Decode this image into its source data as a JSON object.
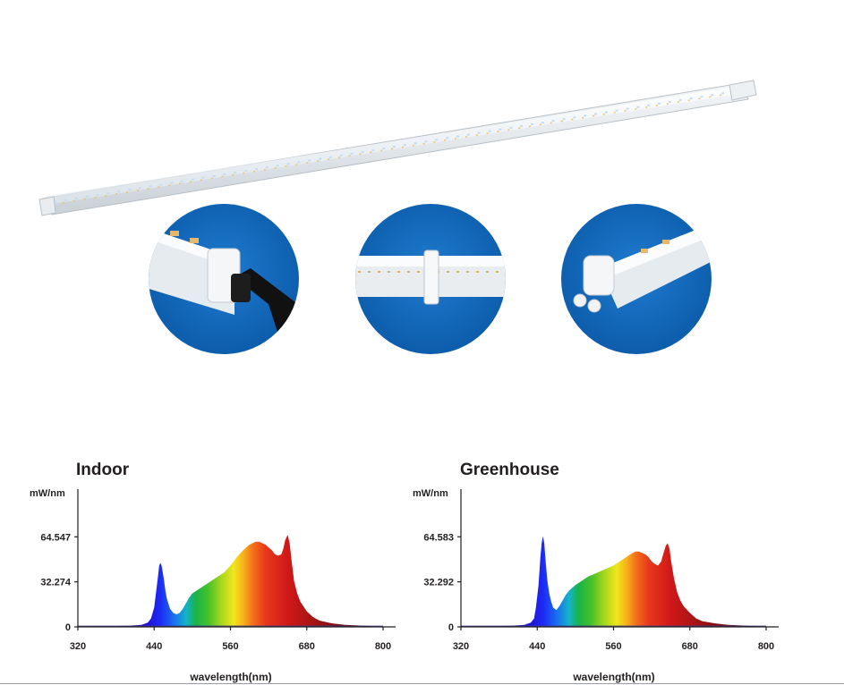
{
  "chart_data": [
    {
      "type": "area",
      "title": "Indoor",
      "ylabel": "mW/nm",
      "xlabel": "wavelength(nm)",
      "x_ticks": [
        320,
        440,
        560,
        680,
        800
      ],
      "y_ticks": [
        0,
        32.274,
        64.547
      ],
      "y_tick_labels": [
        "0",
        "32.274",
        "64.547"
      ],
      "xlim": [
        320,
        800
      ],
      "ylim": [
        0,
        96.8
      ],
      "grid": false,
      "series": [
        {
          "x": [
            320,
            380,
            400,
            420,
            430,
            435,
            440,
            443,
            446,
            448,
            450,
            452,
            455,
            458,
            460,
            465,
            470,
            475,
            480,
            485,
            490,
            495,
            500,
            510,
            520,
            530,
            540,
            550,
            560,
            570,
            580,
            590,
            600,
            605,
            610,
            615,
            620,
            625,
            630,
            635,
            640,
            643,
            646,
            650,
            653,
            656,
            660,
            665,
            670,
            680,
            690,
            700,
            720,
            740,
            760,
            780,
            800
          ],
          "y": [
            0.5,
            0.6,
            0.8,
            1.5,
            3,
            6,
            14,
            25,
            36,
            44,
            46,
            43,
            35,
            25,
            20,
            13,
            10,
            9,
            10,
            13,
            17,
            21,
            24,
            27,
            30,
            33,
            36,
            39,
            44,
            50,
            55,
            59,
            61,
            61,
            60,
            59,
            57,
            55,
            52,
            51,
            52,
            56,
            62,
            66,
            60,
            48,
            33,
            24,
            18,
            11,
            7,
            4.5,
            2.5,
            1.5,
            1,
            0.6,
            0.4
          ]
        }
      ]
    },
    {
      "type": "area",
      "title": "Greenhouse",
      "ylabel": "mW/nm",
      "xlabel": "wavelength(nm)",
      "x_ticks": [
        320,
        440,
        560,
        680,
        800
      ],
      "y_ticks": [
        0,
        32.292,
        64.583
      ],
      "y_tick_labels": [
        "0",
        "32.292",
        "64.583"
      ],
      "xlim": [
        320,
        800
      ],
      "ylim": [
        0,
        96.8
      ],
      "grid": false,
      "series": [
        {
          "x": [
            320,
            380,
            400,
            420,
            430,
            435,
            438,
            442,
            445,
            447,
            449,
            451,
            453,
            456,
            459,
            462,
            465,
            470,
            475,
            480,
            485,
            490,
            500,
            510,
            520,
            530,
            540,
            550,
            560,
            570,
            580,
            590,
            595,
            600,
            605,
            610,
            615,
            620,
            625,
            630,
            635,
            638,
            642,
            645,
            648,
            651,
            655,
            660,
            665,
            670,
            680,
            690,
            700,
            720,
            740,
            760,
            780,
            800
          ],
          "y": [
            0.5,
            0.6,
            0.8,
            1.5,
            3,
            6,
            14,
            30,
            50,
            60,
            65,
            60,
            48,
            33,
            24,
            18,
            14,
            12,
            15,
            19,
            23,
            26,
            30,
            33,
            36,
            38,
            40,
            42,
            44,
            47,
            50,
            53,
            54,
            54,
            53,
            52,
            50,
            47,
            45,
            44,
            47,
            52,
            58,
            60,
            56,
            46,
            35,
            25,
            19,
            15,
            10,
            6,
            4,
            2.5,
            1.5,
            1,
            0.6,
            0.4
          ]
        }
      ]
    }
  ]
}
